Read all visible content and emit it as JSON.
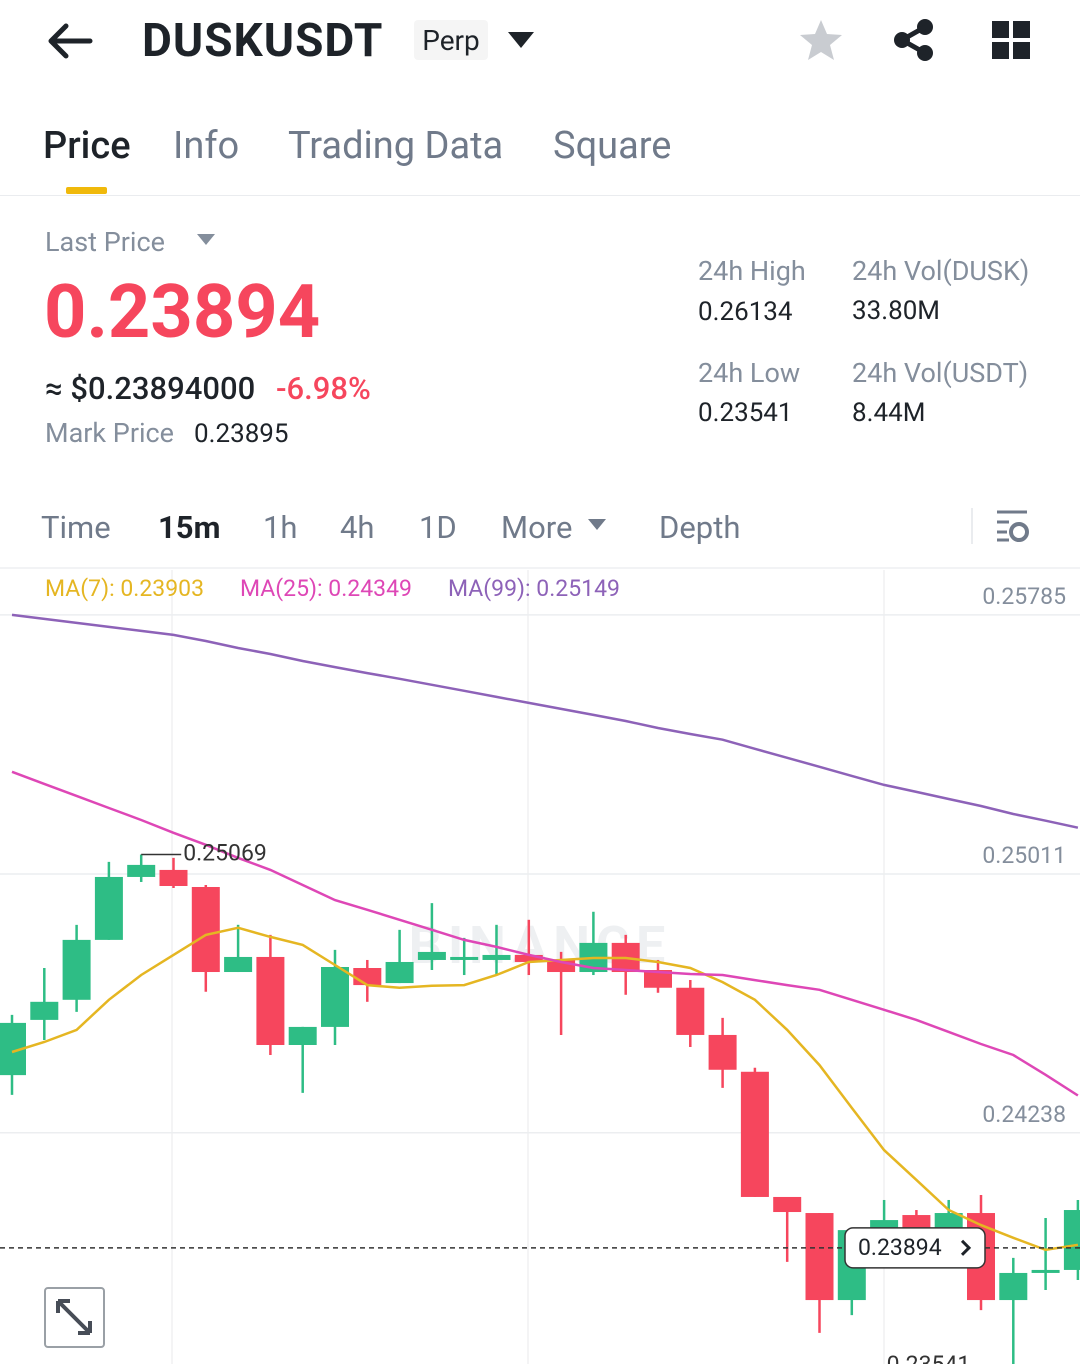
{
  "header": {
    "symbol": "DUSKUSDT",
    "badge": "Perp"
  },
  "tabs": [
    "Price",
    "Info",
    "Trading Data",
    "Square"
  ],
  "ticker": {
    "last_price_label": "Last Price",
    "last_price": "0.23894",
    "usd_price": "≈ $0.23894000",
    "change": "-6.98%",
    "mark_price_label": "Mark Price",
    "mark_price": "0.23895",
    "stats": [
      {
        "label": "24h High",
        "value": "0.26134"
      },
      {
        "label": "24h Vol(DUSK)",
        "value": "33.80M"
      },
      {
        "label": "24h Low",
        "value": "0.23541"
      },
      {
        "label": "24h Vol(USDT)",
        "value": "8.44M"
      }
    ]
  },
  "intervals": [
    "Time",
    "15m",
    "1h",
    "4h",
    "1D",
    "More",
    "Depth"
  ],
  "chart_data": {
    "type": "candlestick",
    "watermark": "BINANCE",
    "open": [
      0.2441,
      0.24575,
      0.24635,
      0.24814,
      0.25002,
      0.25023,
      0.24972,
      0.24718,
      0.24763,
      0.245,
      0.24554,
      0.2473,
      0.24685,
      0.24754,
      0.24754,
      0.24754,
      0.24769,
      0.24754,
      0.24718,
      0.24805,
      0.24724,
      0.24671,
      0.2453,
      0.2442,
      0.24046,
      0.23998,
      0.23738,
      0.23938,
      0.23992,
      0.23947,
      0.23998,
      0.23738,
      0.23819,
      0.23828
    ],
    "high": [
      0.2459,
      0.2473,
      0.24859,
      0.25047,
      0.25069,
      0.25059,
      0.24978,
      0.24859,
      0.24829,
      0.24554,
      0.24784,
      0.24754,
      0.24844,
      0.24924,
      0.2482,
      0.24859,
      0.24874,
      0.24778,
      0.24898,
      0.24829,
      0.24754,
      0.24694,
      0.24581,
      0.24432,
      0.24046,
      0.23998,
      0.23947,
      0.24037,
      0.24007,
      0.24037,
      0.24052,
      0.23864,
      0.23983,
      0.24037
    ],
    "low": [
      0.24351,
      0.24515,
      0.24599,
      0.24814,
      0.24987,
      0.24969,
      0.24659,
      0.24718,
      0.2447,
      0.24357,
      0.245,
      0.24629,
      0.24685,
      0.24724,
      0.24709,
      0.24709,
      0.24709,
      0.2453,
      0.24709,
      0.2465,
      0.24656,
      0.24494,
      0.24372,
      0.24046,
      0.23852,
      0.2364,
      0.23693,
      0.23918,
      0.23918,
      0.23918,
      0.23708,
      0.23541,
      0.23768,
      0.23798
    ],
    "close": [
      0.24566,
      0.24629,
      0.24814,
      0.25002,
      0.25038,
      0.24975,
      0.24718,
      0.24763,
      0.245,
      0.24554,
      0.24733,
      0.24679,
      0.24748,
      0.24778,
      0.24763,
      0.24769,
      0.24748,
      0.24718,
      0.24805,
      0.24718,
      0.24671,
      0.2453,
      0.24426,
      0.24046,
      0.24001,
      0.23738,
      0.23947,
      0.23977,
      0.23941,
      0.23998,
      0.23738,
      0.23819,
      0.23828,
      0.24007
    ],
    "up_color": "#2ebd85",
    "down_color": "#f6465d",
    "series": [
      {
        "name": "MA(7): 0.23903",
        "color": "#e5b622",
        "values": [
          0.24479,
          0.24509,
          0.24545,
          0.24635,
          0.24709,
          0.24769,
          0.24829,
          0.2485,
          0.24823,
          0.24799,
          0.24739,
          0.24679,
          0.24671,
          0.24677,
          0.24679,
          0.24709,
          0.24748,
          0.24754,
          0.2476,
          0.2476,
          0.24748,
          0.2473,
          0.24688,
          0.24635,
          0.24545,
          0.2444,
          0.24312,
          0.24186,
          0.24097,
          0.24007,
          0.23962,
          0.23924,
          0.23888,
          0.23903
        ]
      },
      {
        "name": "MA(25): 0.24349",
        "color": "#de47b6",
        "values": [
          0.25316,
          0.2528,
          0.25244,
          0.25208,
          0.25172,
          0.25134,
          0.25098,
          0.25059,
          0.25023,
          0.24978,
          0.24933,
          0.24904,
          0.24874,
          0.24844,
          0.24814,
          0.24793,
          0.24769,
          0.24748,
          0.2473,
          0.24724,
          0.24718,
          0.24712,
          0.24709,
          0.24694,
          0.24679,
          0.24665,
          0.24635,
          0.24605,
          0.24575,
          0.24539,
          0.24503,
          0.2447,
          0.24411,
          0.24349
        ]
      },
      {
        "name": "MA(99): 0.25149",
        "color": "#8d62b8",
        "values": [
          0.25785,
          0.25773,
          0.25761,
          0.25749,
          0.25737,
          0.25725,
          0.25707,
          0.25686,
          0.25668,
          0.25647,
          0.25629,
          0.25611,
          0.25594,
          0.25576,
          0.25558,
          0.2554,
          0.25522,
          0.25504,
          0.25486,
          0.25468,
          0.25447,
          0.25429,
          0.25412,
          0.25385,
          0.25358,
          0.25331,
          0.25304,
          0.25277,
          0.25256,
          0.25235,
          0.25214,
          0.2519,
          0.2517,
          0.25149
        ]
      }
    ],
    "ylim": [
      0.23547,
      0.25919
    ],
    "yticks": [
      0.25785,
      0.25011,
      0.24238
    ],
    "grid": true,
    "high_marker": 0.25069,
    "low_marker": 0.23541,
    "last_price": 0.23894
  }
}
